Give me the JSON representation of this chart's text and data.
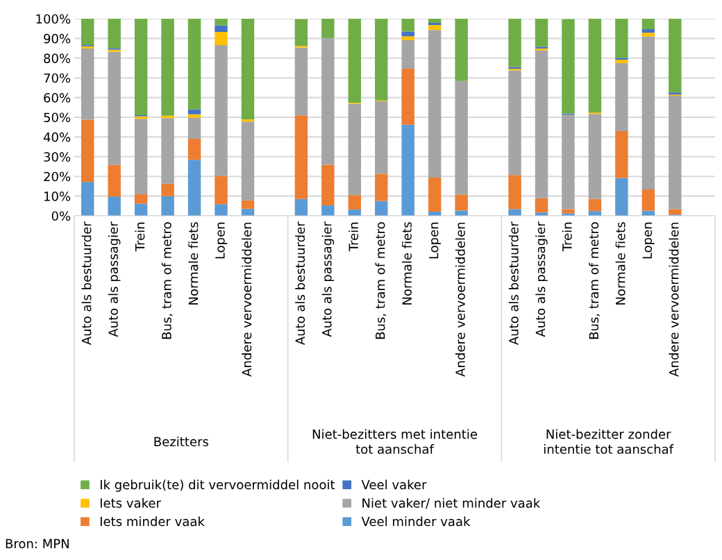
{
  "chart_data": {
    "type": "bar",
    "stacked": true,
    "categories": [
      "Auto als bestuurder",
      "Auto als passagier",
      "Trein",
      "Bus, tram of metro",
      "Normale fiets",
      "Lopen",
      "Andere vervoermiddelen",
      null,
      "Auto als bestuurder",
      "Auto als passagier",
      "Trein",
      "Bus, tram of metro",
      "Normale fiets",
      "Lopen",
      "Andere vervoermiddelen",
      null,
      "Auto als bestuurder",
      "Auto als passagier",
      "Trein",
      "Bus, tram of metro",
      "Normale fiets",
      "Lopen",
      "Andere vervoermiddelen",
      null
    ],
    "series": [
      {
        "name": "Veel minder vaak",
        "color": "#5b9bd5",
        "values": [
          17.2,
          9.8,
          6.2,
          9.9,
          28.4,
          5.9,
          3.6,
          null,
          8.5,
          5.3,
          3.2,
          7.5,
          46.2,
          2.1,
          2.7,
          null,
          3.4,
          1.7,
          1.3,
          2.4,
          19.2,
          2.6,
          0.6,
          null
        ]
      },
      {
        "name": "Iets minder vaak",
        "color": "#ed7d31",
        "values": [
          31.6,
          16.1,
          4.7,
          6.4,
          10.7,
          14.3,
          4.2,
          null,
          42.5,
          20.6,
          7.3,
          13.8,
          28.5,
          17.3,
          8.1,
          null,
          17.3,
          7.2,
          2.1,
          6.1,
          23.8,
          10.8,
          2.8,
          null
        ]
      },
      {
        "name": "Niet vaker/ niet minder vaak",
        "color": "#a5a5a5",
        "values": [
          36.1,
          57.4,
          38.3,
          33.3,
          10.7,
          66.4,
          40.0,
          null,
          34.4,
          64.3,
          46.3,
          36.8,
          14.4,
          74.9,
          57.6,
          null,
          53.1,
          75.0,
          48.0,
          43.2,
          34.5,
          77.6,
          57.5,
          null
        ]
      },
      {
        "name": "Iets vaker",
        "color": "#ffc000",
        "values": [
          1.1,
          1.0,
          1.3,
          1.2,
          1.7,
          6.7,
          1.1,
          null,
          0.8,
          0,
          0.5,
          0.4,
          2.0,
          2.5,
          0,
          null,
          0.8,
          1.0,
          null,
          0.7,
          1.7,
          1.9,
          0.6,
          null
        ]
      },
      {
        "name": "Veel vaker",
        "color": "#4472c4",
        "values": [
          0.6,
          0.8,
          0.6,
          0,
          2.5,
          3.3,
          0,
          null,
          null,
          0,
          0,
          0,
          2.4,
          1.1,
          0,
          null,
          0.9,
          0.9,
          0.5,
          0,
          0.9,
          1.8,
          1.1,
          null
        ]
      },
      {
        "name": "Ik gebruik(te) dit vervoermiddel nooit",
        "color": "#70ad47",
        "values": [
          13.4,
          14.9,
          48.9,
          49.2,
          46.0,
          3.4,
          51.1,
          null,
          13.6,
          9.8,
          42.7,
          41.5,
          6.5,
          2.1,
          31.6,
          null,
          24.5,
          14.2,
          47.9,
          47.6,
          19.9,
          5.3,
          37.4,
          null
        ]
      }
    ],
    "ylim": [
      0,
      100
    ],
    "yticks": [
      {
        "value": 0,
        "label": "0%"
      },
      {
        "value": 10,
        "label": "10%"
      },
      {
        "value": 20,
        "label": "20%"
      },
      {
        "value": 30,
        "label": "30%"
      },
      {
        "value": 40,
        "label": "40%"
      },
      {
        "value": 50,
        "label": "50%"
      },
      {
        "value": 60,
        "label": "60%"
      },
      {
        "value": 70,
        "label": "70%"
      },
      {
        "value": 80,
        "label": "80%"
      },
      {
        "value": 90,
        "label": "90%"
      },
      {
        "value": 100,
        "label": "100%"
      }
    ],
    "grid": "y",
    "legend": "bottom",
    "annotations": [
      "Bezitters",
      "Niet-bezitters met intentie\ntot aanschaf",
      "Niet-bezitter zonder\nintentie tot aanschaf",
      "Bron: MPN"
    ]
  }
}
